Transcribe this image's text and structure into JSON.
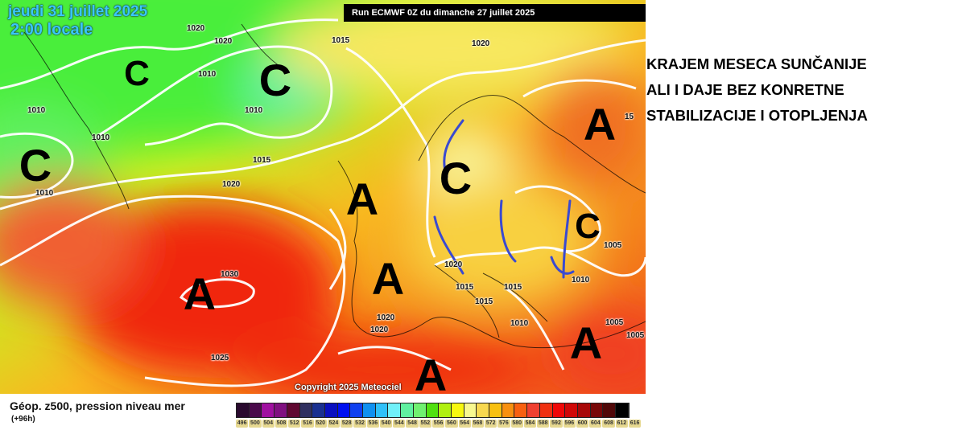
{
  "map": {
    "date_line1": "jeudi 31 juillet 2025",
    "date_line2": "2:00 locale",
    "run_label": "Run ECMWF 0Z du dimanche 27 juillet 2025",
    "copyright": "Copyright 2025 Meteociel",
    "pressure_labels": [
      "1020",
      "1020",
      "1015",
      "1020",
      "1010",
      "1010",
      "1010",
      "1010",
      "1015",
      "1020",
      "1010",
      "1030",
      "1025",
      "1020",
      "1015",
      "1015",
      "1015",
      "1010",
      "1005",
      "1010",
      "1020",
      "1020",
      "1005",
      "1005",
      "15"
    ],
    "pressure_centers": [
      "C",
      "C",
      "C",
      "A",
      "C",
      "A",
      "C",
      "A",
      "A",
      "A",
      "A"
    ],
    "annotation_line_color": "#3a4ad0"
  },
  "legend": {
    "title": "Géop. z500, pression niveau mer",
    "subtitle": "(+96h)",
    "levels": [
      "496",
      "500",
      "504",
      "508",
      "512",
      "516",
      "520",
      "524",
      "528",
      "532",
      "536",
      "540",
      "544",
      "548",
      "552",
      "556",
      "560",
      "564",
      "568",
      "572",
      "576",
      "580",
      "584",
      "588",
      "592",
      "596",
      "600",
      "604",
      "608",
      "612",
      "616"
    ],
    "colors": [
      "#2a0a2e",
      "#4a0a4a",
      "#a010a0",
      "#801080",
      "#600830",
      "#303060",
      "#1a3090",
      "#0a10c0",
      "#0010f0",
      "#1040f0",
      "#1090f0",
      "#30c0f8",
      "#70f0f8",
      "#60f0a0",
      "#70f070",
      "#50e010",
      "#b0f010",
      "#f8f810",
      "#f8f890",
      "#f8d850",
      "#f8c010",
      "#f89010",
      "#f86010",
      "#f04030",
      "#f03010",
      "#f00808",
      "#d00808",
      "#a80808",
      "#780808",
      "#500808",
      "#000000"
    ]
  },
  "annotation": {
    "lines": [
      "KRAJEM MESECA SUNČANIJE",
      "ALI I DAJE BEZ KONRETNE",
      "STABILIZACIJE I OTOPLJENJA"
    ]
  }
}
